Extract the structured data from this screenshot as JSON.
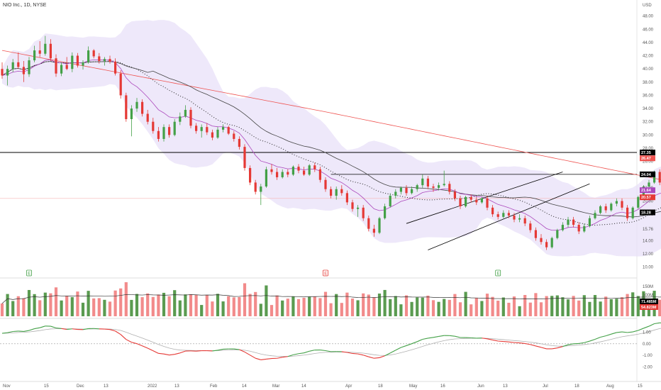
{
  "chart_data": {
    "type": "candlestick",
    "title": "NIO Inc., 1D, NYSE",
    "currency": "USD",
    "colors": {
      "up": "#43a047",
      "down": "#e53935",
      "bollinger_fill": "#e8e0f8",
      "upper_band": "#e1d6f5",
      "sma_long": "#ef5350",
      "sma_mid": "#444444",
      "ema_short": "#ab47bc",
      "macd_line": "#43a047",
      "signal_line": "#b0b0b0",
      "volume_up": "#5a9b50",
      "volume_down": "#f28b8b"
    },
    "x_axis": {
      "ticks": [
        "Nov",
        "15",
        "Dec",
        "13",
        "2022",
        "13",
        "Feb",
        "14",
        "Mar",
        "14",
        "Apr",
        "18",
        "May",
        "16",
        "Jun",
        "13",
        "Jul",
        "18",
        "Aug",
        "15"
      ]
    },
    "price_axis": {
      "range": [
        9,
        50
      ],
      "ticks": [
        "48.00",
        "46.00",
        "44.00",
        "42.00",
        "40.00",
        "38.00",
        "36.00",
        "34.00",
        "32.00",
        "30.00",
        "28.00",
        "26.00",
        "24.00",
        "22.00",
        "20.00",
        "18.00",
        "15.76",
        "14.00",
        "12.00",
        "10.00"
      ]
    },
    "price_labels": [
      {
        "text": "27.35",
        "value": 27.35,
        "color": "#000000"
      },
      {
        "text": "26.47",
        "value": 26.47,
        "color": "#ef5350"
      },
      {
        "text": "24.04",
        "value": 24.04,
        "color": "#000000"
      },
      {
        "text": "21.64",
        "value": 21.64,
        "color": "#ab47bc"
      },
      {
        "text": "20.57",
        "value": 20.57,
        "color": "#e53935"
      },
      {
        "text": "18.28",
        "value": 18.28,
        "color": "#000000"
      }
    ],
    "horizontal_levels": [
      27.35,
      24.04
    ],
    "candles": [
      [
        40.0,
        41.0,
        38.5,
        39.0
      ],
      [
        39.0,
        40.5,
        37.5,
        40.0
      ],
      [
        40.0,
        41.5,
        39.5,
        41.0
      ],
      [
        41.0,
        42.5,
        40.0,
        40.3
      ],
      [
        40.3,
        41.2,
        38.0,
        39.2
      ],
      [
        39.2,
        41.8,
        38.8,
        41.3
      ],
      [
        41.3,
        43.5,
        41.0,
        42.8
      ],
      [
        42.8,
        44.2,
        41.8,
        42.3
      ],
      [
        42.3,
        45.0,
        42.0,
        43.8
      ],
      [
        43.8,
        44.5,
        41.2,
        41.6
      ],
      [
        41.6,
        42.2,
        38.8,
        39.3
      ],
      [
        39.3,
        41.0,
        38.9,
        40.6
      ],
      [
        40.6,
        41.8,
        39.8,
        40.0
      ],
      [
        40.0,
        42.5,
        39.5,
        42.0
      ],
      [
        42.0,
        42.4,
        40.2,
        40.5
      ],
      [
        40.5,
        41.3,
        39.9,
        41.0
      ],
      [
        41.0,
        43.4,
        40.8,
        42.8
      ],
      [
        42.8,
        43.0,
        41.6,
        41.9
      ],
      [
        41.9,
        42.4,
        40.8,
        41.2
      ],
      [
        41.2,
        41.8,
        40.5,
        41.5
      ],
      [
        41.5,
        42.0,
        40.8,
        41.1
      ],
      [
        41.1,
        41.6,
        39.0,
        39.3
      ],
      [
        39.3,
        39.8,
        35.5,
        36.0
      ],
      [
        36.0,
        36.4,
        32.0,
        32.4
      ],
      [
        32.4,
        34.5,
        29.8,
        34.0
      ],
      [
        34.0,
        35.6,
        33.5,
        35.0
      ],
      [
        35.0,
        35.4,
        32.8,
        33.2
      ],
      [
        33.2,
        33.8,
        31.6,
        32.0
      ],
      [
        32.0,
        32.6,
        30.2,
        30.6
      ],
      [
        30.6,
        31.2,
        29.0,
        29.4
      ],
      [
        29.4,
        31.6,
        29.0,
        31.2
      ],
      [
        31.2,
        31.6,
        29.6,
        30.0
      ],
      [
        30.0,
        32.4,
        29.8,
        32.0
      ],
      [
        32.0,
        33.4,
        31.5,
        32.8
      ],
      [
        32.8,
        34.5,
        32.6,
        33.8
      ],
      [
        33.8,
        34.2,
        31.0,
        31.4
      ],
      [
        31.4,
        31.8,
        30.2,
        30.6
      ],
      [
        30.6,
        31.6,
        29.6,
        31.2
      ],
      [
        31.2,
        31.8,
        30.0,
        30.4
      ],
      [
        30.4,
        30.8,
        29.2,
        29.6
      ],
      [
        29.6,
        31.2,
        29.4,
        30.8
      ],
      [
        30.8,
        31.6,
        30.4,
        31.2
      ],
      [
        31.2,
        31.4,
        30.0,
        30.2
      ],
      [
        30.2,
        30.6,
        29.0,
        29.4
      ],
      [
        29.4,
        29.8,
        27.8,
        28.2
      ],
      [
        28.2,
        28.6,
        24.6,
        25.0
      ],
      [
        25.0,
        25.4,
        22.4,
        22.8
      ],
      [
        22.8,
        23.2,
        21.0,
        21.4
      ],
      [
        21.4,
        22.6,
        19.4,
        22.2
      ],
      [
        22.2,
        25.2,
        22.0,
        24.8
      ],
      [
        24.8,
        25.6,
        24.0,
        24.4
      ],
      [
        24.4,
        25.0,
        23.2,
        23.6
      ],
      [
        23.6,
        24.8,
        23.4,
        24.4
      ],
      [
        24.4,
        24.8,
        23.6,
        24.0
      ],
      [
        24.0,
        25.4,
        23.8,
        25.2
      ],
      [
        25.2,
        25.6,
        24.2,
        24.6
      ],
      [
        24.6,
        25.2,
        23.8,
        24.0
      ],
      [
        24.0,
        25.6,
        23.8,
        25.4
      ],
      [
        25.4,
        25.8,
        24.4,
        24.8
      ],
      [
        24.8,
        25.2,
        22.8,
        23.2
      ],
      [
        23.2,
        23.6,
        21.4,
        21.8
      ],
      [
        21.8,
        22.2,
        20.4,
        20.8
      ],
      [
        20.8,
        22.2,
        20.2,
        21.8
      ],
      [
        21.8,
        22.4,
        20.8,
        21.2
      ],
      [
        21.2,
        21.6,
        19.4,
        19.8
      ],
      [
        19.8,
        20.2,
        18.4,
        18.8
      ],
      [
        18.8,
        19.4,
        17.6,
        19.0
      ],
      [
        19.0,
        19.4,
        17.0,
        17.4
      ],
      [
        17.4,
        17.8,
        15.4,
        15.8
      ],
      [
        15.8,
        16.4,
        14.6,
        15.2
      ],
      [
        15.2,
        17.6,
        15.0,
        17.4
      ],
      [
        17.4,
        19.6,
        17.2,
        19.2
      ],
      [
        19.2,
        21.2,
        19.0,
        20.8
      ],
      [
        20.8,
        21.8,
        20.4,
        21.4
      ],
      [
        21.4,
        22.2,
        21.0,
        22.0
      ],
      [
        22.0,
        22.4,
        20.8,
        21.2
      ],
      [
        21.2,
        22.2,
        21.0,
        21.8
      ],
      [
        21.8,
        22.6,
        21.4,
        22.4
      ],
      [
        22.4,
        24.0,
        22.0,
        23.4
      ],
      [
        23.4,
        23.8,
        21.8,
        22.2
      ],
      [
        22.2,
        22.6,
        21.4,
        22.0
      ],
      [
        22.0,
        22.8,
        21.6,
        22.4
      ],
      [
        22.4,
        24.6,
        22.2,
        22.6
      ],
      [
        22.6,
        23.0,
        21.0,
        21.4
      ],
      [
        21.4,
        21.8,
        20.0,
        20.4
      ],
      [
        20.4,
        20.8,
        18.8,
        19.2
      ],
      [
        19.2,
        20.8,
        19.0,
        20.6
      ],
      [
        20.6,
        21.0,
        19.8,
        20.2
      ],
      [
        20.2,
        20.6,
        19.4,
        19.8
      ],
      [
        19.8,
        20.6,
        19.6,
        20.4
      ],
      [
        20.4,
        20.8,
        18.6,
        19.0
      ],
      [
        19.0,
        19.4,
        17.6,
        18.0
      ],
      [
        18.0,
        18.4,
        17.2,
        17.6
      ],
      [
        17.6,
        18.6,
        17.4,
        18.2
      ],
      [
        18.2,
        18.6,
        17.4,
        17.8
      ],
      [
        17.8,
        18.2,
        16.8,
        17.2
      ],
      [
        17.2,
        18.0,
        16.8,
        17.4
      ],
      [
        17.4,
        17.8,
        16.2,
        16.6
      ],
      [
        16.6,
        17.0,
        15.2,
        15.6
      ],
      [
        15.6,
        16.0,
        14.0,
        14.4
      ],
      [
        14.4,
        15.0,
        13.4,
        13.8
      ],
      [
        13.8,
        14.2,
        12.6,
        13.0
      ],
      [
        13.0,
        14.6,
        12.8,
        14.4
      ],
      [
        14.4,
        15.8,
        14.2,
        15.6
      ],
      [
        15.6,
        16.8,
        15.4,
        16.4
      ],
      [
        16.4,
        17.6,
        16.0,
        17.2
      ],
      [
        17.2,
        17.6,
        16.0,
        16.4
      ],
      [
        16.4,
        16.8,
        15.0,
        15.4
      ],
      [
        15.4,
        16.6,
        15.2,
        16.2
      ],
      [
        16.2,
        17.8,
        16.0,
        17.4
      ],
      [
        17.4,
        18.6,
        17.2,
        18.2
      ],
      [
        18.2,
        19.4,
        18.0,
        19.2
      ],
      [
        19.2,
        19.6,
        18.2,
        18.6
      ],
      [
        18.6,
        19.8,
        18.4,
        19.6
      ],
      [
        19.6,
        20.4,
        19.2,
        20.0
      ],
      [
        20.0,
        20.4,
        18.6,
        19.0
      ],
      [
        19.0,
        19.4,
        17.0,
        17.4
      ],
      [
        17.4,
        19.2,
        17.2,
        19.0
      ],
      [
        19.0,
        20.8,
        18.8,
        20.6
      ],
      [
        20.6,
        22.4,
        20.4,
        22.2
      ],
      [
        22.2,
        23.2,
        21.8,
        22.8
      ],
      [
        22.8,
        24.6,
        22.6,
        24.4
      ],
      [
        24.4,
        24.8,
        22.4,
        22.8
      ],
      [
        22.8,
        23.2,
        20.8,
        21.2
      ],
      [
        21.2,
        22.6,
        21.0,
        22.4
      ],
      [
        22.4,
        22.8,
        21.0,
        21.4
      ],
      [
        21.4,
        22.2,
        20.8,
        21.8
      ],
      [
        21.8,
        22.8,
        21.6,
        22.4
      ],
      [
        22.4,
        22.6,
        20.4,
        20.8
      ]
    ],
    "volume_axis": {
      "ticks": [
        "150M",
        "100M",
        "71.485M",
        "54.823M"
      ]
    },
    "macd_axis": {
      "range": [
        -3,
        2
      ],
      "ticks": [
        "1.00",
        "0.00",
        "-1.00",
        "-2.00"
      ]
    },
    "earnings_markers": [
      "E",
      "E",
      "E"
    ]
  }
}
